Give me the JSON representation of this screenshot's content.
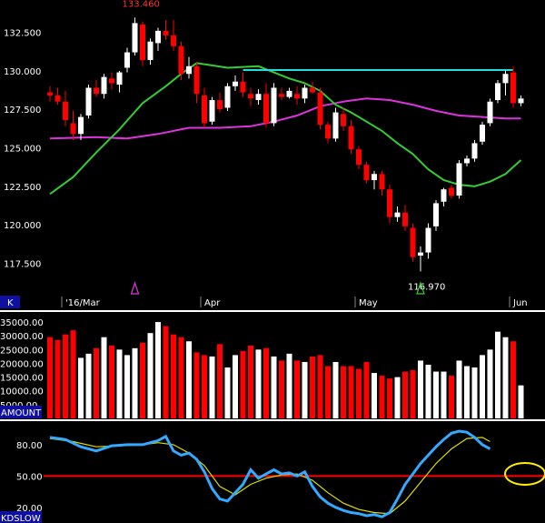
{
  "panels": {
    "price_label": "K",
    "volume_label": "AMOUNT",
    "osc_label": "KDSLOW"
  },
  "colors": {
    "background": "#000000",
    "up": "#ffffff",
    "down": "#ff0000",
    "ma_short": "#33cc33",
    "ma_long": "#dd33dd",
    "resistance": "#22dddd",
    "slow_k": "#33aaff",
    "slow_d": "#dddd00",
    "level_line": "#ff0000",
    "highlight_ellipse": "#ffee00",
    "label_bar": "#1010a0"
  },
  "chart_data": [
    {
      "type": "candlestick",
      "y_ticks": [
        "132.500",
        "130.000",
        "127.500",
        "125.000",
        "122.500",
        "120.000",
        "117.500"
      ],
      "ylim": [
        115.4,
        134.6
      ],
      "x_labels": [
        {
          "label": "'16/Mar",
          "index": 2
        },
        {
          "label": "Apr",
          "index": 20
        },
        {
          "label": "May",
          "index": 40
        },
        {
          "label": "Jun",
          "index": 60
        }
      ],
      "annotations": [
        {
          "text": "133.460",
          "index": 11,
          "anchor": "high"
        },
        {
          "text": "116.970",
          "index": 48,
          "anchor": "low"
        }
      ],
      "markers": [
        {
          "index": 11,
          "color": "#dd33dd"
        },
        {
          "index": 48,
          "color": "#33cc33"
        }
      ],
      "resistance_line": {
        "value": 130.05,
        "from_index": 25,
        "to_index": 60
      },
      "ohlc": [
        [
          128.6,
          129.0,
          128.0,
          128.4
        ],
        [
          128.4,
          128.9,
          127.8,
          128.0
        ],
        [
          128.0,
          128.7,
          126.4,
          126.8
        ],
        [
          126.6,
          127.4,
          125.5,
          125.9
        ],
        [
          125.9,
          127.2,
          125.5,
          127.0
        ],
        [
          127.1,
          129.1,
          126.9,
          128.9
        ],
        [
          128.9,
          129.4,
          128.3,
          128.5
        ],
        [
          128.5,
          129.8,
          128.2,
          129.6
        ],
        [
          129.5,
          129.9,
          128.8,
          129.2
        ],
        [
          129.1,
          130.0,
          128.6,
          129.9
        ],
        [
          130.2,
          131.5,
          129.9,
          131.2
        ],
        [
          131.2,
          133.46,
          131.0,
          133.1
        ],
        [
          133.0,
          133.2,
          130.3,
          130.7
        ],
        [
          130.7,
          132.1,
          130.4,
          131.9
        ],
        [
          131.8,
          132.8,
          131.3,
          132.6
        ],
        [
          132.6,
          133.3,
          132.0,
          132.3
        ],
        [
          132.3,
          133.3,
          131.3,
          131.6
        ],
        [
          131.6,
          131.9,
          129.4,
          129.8
        ],
        [
          129.8,
          130.9,
          129.5,
          130.3
        ],
        [
          130.3,
          130.6,
          127.9,
          128.5
        ],
        [
          128.4,
          128.9,
          126.3,
          126.6
        ],
        [
          126.7,
          128.3,
          126.5,
          128.1
        ],
        [
          128.1,
          128.6,
          127.3,
          127.5
        ],
        [
          127.6,
          129.2,
          127.4,
          129.0
        ],
        [
          129.0,
          129.7,
          128.7,
          129.3
        ],
        [
          129.3,
          129.9,
          128.3,
          128.6
        ],
        [
          128.5,
          128.9,
          127.7,
          128.2
        ],
        [
          128.1,
          128.8,
          127.8,
          128.5
        ],
        [
          128.5,
          129.2,
          126.3,
          126.6
        ],
        [
          126.6,
          129.2,
          126.4,
          128.9
        ],
        [
          128.5,
          128.9,
          128.1,
          128.3
        ],
        [
          128.3,
          128.9,
          128.2,
          128.7
        ],
        [
          128.5,
          129.0,
          127.8,
          128.2
        ],
        [
          128.2,
          129.1,
          127.9,
          128.9
        ],
        [
          128.9,
          129.3,
          128.5,
          128.6
        ],
        [
          128.6,
          128.9,
          126.2,
          126.5
        ],
        [
          126.5,
          126.7,
          125.3,
          125.6
        ],
        [
          125.6,
          127.6,
          125.4,
          127.3
        ],
        [
          127.2,
          127.6,
          126.1,
          126.4
        ],
        [
          126.4,
          126.8,
          124.6,
          124.9
        ],
        [
          124.9,
          125.1,
          123.6,
          123.9
        ],
        [
          123.9,
          124.1,
          122.7,
          122.9
        ],
        [
          122.9,
          123.5,
          122.3,
          123.3
        ],
        [
          123.3,
          123.5,
          121.9,
          122.3
        ],
        [
          122.3,
          122.6,
          120.1,
          120.5
        ],
        [
          120.5,
          121.2,
          120.2,
          120.8
        ],
        [
          120.8,
          121.3,
          119.6,
          119.9
        ],
        [
          119.8,
          120.1,
          117.6,
          117.9
        ],
        [
          118.0,
          118.6,
          116.97,
          118.2
        ],
        [
          118.2,
          120.1,
          117.8,
          119.8
        ],
        [
          119.9,
          121.6,
          119.6,
          121.4
        ],
        [
          121.5,
          122.4,
          121.2,
          122.3
        ],
        [
          122.4,
          122.6,
          121.7,
          121.9
        ],
        [
          121.9,
          124.2,
          121.7,
          124.0
        ],
        [
          124.0,
          124.5,
          123.8,
          124.3
        ],
        [
          124.3,
          125.5,
          124.1,
          125.3
        ],
        [
          125.4,
          126.7,
          125.2,
          126.5
        ],
        [
          126.6,
          128.2,
          126.4,
          128.0
        ],
        [
          128.1,
          129.4,
          127.9,
          129.2
        ],
        [
          129.2,
          130.0,
          128.4,
          129.8
        ],
        [
          129.9,
          130.3,
          127.6,
          127.9
        ],
        [
          127.9,
          128.4,
          127.7,
          128.2
        ]
      ],
      "ma_short": [
        {
          "i": 0,
          "v": 122.0
        },
        {
          "i": 3,
          "v": 123.1
        },
        {
          "i": 6,
          "v": 124.7
        },
        {
          "i": 9,
          "v": 126.2
        },
        {
          "i": 12,
          "v": 127.9
        },
        {
          "i": 15,
          "v": 129.0
        },
        {
          "i": 17,
          "v": 129.8
        },
        {
          "i": 19,
          "v": 130.5
        },
        {
          "i": 21,
          "v": 130.35
        },
        {
          "i": 23,
          "v": 130.2
        },
        {
          "i": 25,
          "v": 130.25
        },
        {
          "i": 27,
          "v": 130.3
        },
        {
          "i": 29,
          "v": 129.9
        },
        {
          "i": 31,
          "v": 129.5
        },
        {
          "i": 33,
          "v": 129.2
        },
        {
          "i": 35,
          "v": 128.7
        },
        {
          "i": 37,
          "v": 127.8
        },
        {
          "i": 39,
          "v": 127.3
        },
        {
          "i": 41,
          "v": 126.7
        },
        {
          "i": 43,
          "v": 126.1
        },
        {
          "i": 45,
          "v": 125.3
        },
        {
          "i": 47,
          "v": 124.6
        },
        {
          "i": 49,
          "v": 123.6
        },
        {
          "i": 51,
          "v": 122.9
        },
        {
          "i": 53,
          "v": 122.6
        },
        {
          "i": 55,
          "v": 122.5
        },
        {
          "i": 57,
          "v": 122.8
        },
        {
          "i": 59,
          "v": 123.3
        },
        {
          "i": 61,
          "v": 124.2
        }
      ],
      "ma_long": [
        {
          "i": 0,
          "v": 125.6
        },
        {
          "i": 6,
          "v": 125.7
        },
        {
          "i": 10,
          "v": 125.6
        },
        {
          "i": 14,
          "v": 125.9
        },
        {
          "i": 18,
          "v": 126.3
        },
        {
          "i": 22,
          "v": 126.3
        },
        {
          "i": 26,
          "v": 126.4
        },
        {
          "i": 29,
          "v": 126.7
        },
        {
          "i": 32,
          "v": 127.1
        },
        {
          "i": 35,
          "v": 127.7
        },
        {
          "i": 38,
          "v": 128.0
        },
        {
          "i": 41,
          "v": 128.2
        },
        {
          "i": 44,
          "v": 128.1
        },
        {
          "i": 47,
          "v": 127.8
        },
        {
          "i": 50,
          "v": 127.4
        },
        {
          "i": 53,
          "v": 127.1
        },
        {
          "i": 56,
          "v": 127.0
        },
        {
          "i": 59,
          "v": 126.9
        },
        {
          "i": 61,
          "v": 126.9
        }
      ]
    },
    {
      "type": "bar",
      "y_ticks": [
        "35000.00",
        "30000.00",
        "25000.00",
        "20000.00",
        "15000.00",
        "10000.00",
        "5000.00"
      ],
      "ylim": [
        0,
        38000
      ],
      "values": [
        29500,
        28500,
        30500,
        32000,
        22000,
        23500,
        25500,
        29500,
        26500,
        25000,
        23000,
        25500,
        27500,
        31000,
        35000,
        33500,
        30500,
        29500,
        28000,
        24000,
        23000,
        22500,
        27000,
        18500,
        23000,
        24500,
        26500,
        25000,
        25500,
        22500,
        21000,
        23500,
        21000,
        20500,
        22500,
        23000,
        19000,
        20500,
        19000,
        19000,
        18000,
        20500,
        16500,
        15500,
        14500,
        15000,
        17000,
        17500,
        21000,
        19500,
        17000,
        17000,
        15500,
        21000,
        19000,
        18500,
        23000,
        25000,
        31500,
        29500,
        28000,
        12000
      ]
    },
    {
      "type": "line",
      "y_ticks": [
        "80.00",
        "50.00",
        "20.00"
      ],
      "ylim": [
        5,
        100
      ],
      "level_line": 50,
      "slow_k": [
        {
          "i": 0,
          "v": 87
        },
        {
          "i": 2,
          "v": 85
        },
        {
          "i": 4,
          "v": 78
        },
        {
          "i": 6,
          "v": 74
        },
        {
          "i": 8,
          "v": 79
        },
        {
          "i": 10,
          "v": 80
        },
        {
          "i": 12,
          "v": 80
        },
        {
          "i": 14,
          "v": 84
        },
        {
          "i": 15,
          "v": 88
        },
        {
          "i": 16,
          "v": 74
        },
        {
          "i": 17,
          "v": 70
        },
        {
          "i": 18,
          "v": 72
        },
        {
          "i": 19,
          "v": 66
        },
        {
          "i": 20,
          "v": 54
        },
        {
          "i": 21,
          "v": 38
        },
        {
          "i": 22,
          "v": 28
        },
        {
          "i": 23,
          "v": 26
        },
        {
          "i": 24,
          "v": 34
        },
        {
          "i": 25,
          "v": 42
        },
        {
          "i": 26,
          "v": 56
        },
        {
          "i": 27,
          "v": 48
        },
        {
          "i": 28,
          "v": 52
        },
        {
          "i": 29,
          "v": 56
        },
        {
          "i": 30,
          "v": 52
        },
        {
          "i": 31,
          "v": 53
        },
        {
          "i": 32,
          "v": 50
        },
        {
          "i": 33,
          "v": 54
        },
        {
          "i": 34,
          "v": 40
        },
        {
          "i": 35,
          "v": 30
        },
        {
          "i": 36,
          "v": 24
        },
        {
          "i": 37,
          "v": 20
        },
        {
          "i": 38,
          "v": 17
        },
        {
          "i": 39,
          "v": 15
        },
        {
          "i": 40,
          "v": 14
        },
        {
          "i": 41,
          "v": 12
        },
        {
          "i": 42,
          "v": 13
        },
        {
          "i": 43,
          "v": 11
        },
        {
          "i": 44,
          "v": 15
        },
        {
          "i": 45,
          "v": 28
        },
        {
          "i": 46,
          "v": 42
        },
        {
          "i": 47,
          "v": 52
        },
        {
          "i": 48,
          "v": 62
        },
        {
          "i": 49,
          "v": 70
        },
        {
          "i": 50,
          "v": 78
        },
        {
          "i": 51,
          "v": 85
        },
        {
          "i": 52,
          "v": 91
        },
        {
          "i": 53,
          "v": 93
        },
        {
          "i": 54,
          "v": 92
        },
        {
          "i": 55,
          "v": 87
        },
        {
          "i": 56,
          "v": 80
        },
        {
          "i": 57,
          "v": 76
        }
      ],
      "slow_d": [
        {
          "i": 0,
          "v": 86
        },
        {
          "i": 3,
          "v": 83
        },
        {
          "i": 6,
          "v": 78
        },
        {
          "i": 9,
          "v": 79
        },
        {
          "i": 12,
          "v": 80
        },
        {
          "i": 14,
          "v": 82
        },
        {
          "i": 16,
          "v": 80
        },
        {
          "i": 18,
          "v": 72
        },
        {
          "i": 20,
          "v": 60
        },
        {
          "i": 22,
          "v": 40
        },
        {
          "i": 24,
          "v": 32
        },
        {
          "i": 26,
          "v": 42
        },
        {
          "i": 28,
          "v": 48
        },
        {
          "i": 30,
          "v": 51
        },
        {
          "i": 32,
          "v": 52
        },
        {
          "i": 34,
          "v": 46
        },
        {
          "i": 36,
          "v": 34
        },
        {
          "i": 38,
          "v": 24
        },
        {
          "i": 40,
          "v": 18
        },
        {
          "i": 42,
          "v": 15
        },
        {
          "i": 44,
          "v": 14
        },
        {
          "i": 46,
          "v": 26
        },
        {
          "i": 48,
          "v": 44
        },
        {
          "i": 50,
          "v": 62
        },
        {
          "i": 52,
          "v": 76
        },
        {
          "i": 54,
          "v": 86
        },
        {
          "i": 56,
          "v": 87
        },
        {
          "i": 57,
          "v": 83
        }
      ]
    }
  ]
}
